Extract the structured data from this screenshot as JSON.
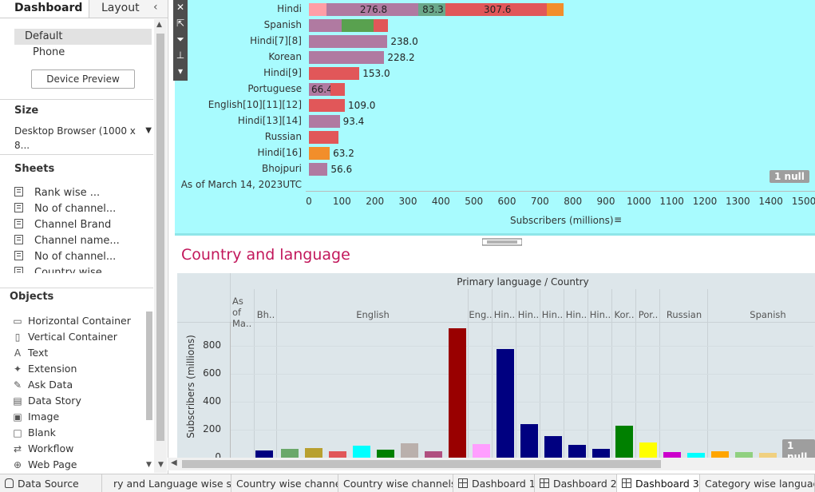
{
  "left_panel": {
    "tabs": {
      "dashboard": "Dashboard",
      "layout": "Layout"
    },
    "devices": {
      "default": "Default",
      "phone": "Phone"
    },
    "device_preview": "Device Preview",
    "size": {
      "title": "Size",
      "value": "Desktop Browser (1000 x 8..."
    },
    "sheets": {
      "title": "Sheets",
      "items": [
        "Rank wise ...",
        "No of channel...",
        "Channel Brand",
        "Channel name...",
        "No of channel...",
        "Country wise"
      ]
    },
    "objects": {
      "title": "Objects",
      "items": [
        {
          "label": "Horizontal Container",
          "icon": "horizontal-container-icon",
          "glyph": "▭"
        },
        {
          "label": "Vertical Container",
          "icon": "vertical-container-icon",
          "glyph": "▯"
        },
        {
          "label": "Text",
          "icon": "text-icon",
          "glyph": "A"
        },
        {
          "label": "Extension",
          "icon": "extension-icon",
          "glyph": "✦"
        },
        {
          "label": "Ask Data",
          "icon": "ask-data-icon",
          "glyph": "✎"
        },
        {
          "label": "Data Story",
          "icon": "data-story-icon",
          "glyph": "▤"
        },
        {
          "label": "Image",
          "icon": "image-icon",
          "glyph": "▣"
        },
        {
          "label": "Blank",
          "icon": "blank-icon",
          "glyph": "□"
        },
        {
          "label": "Workflow",
          "icon": "workflow-icon",
          "glyph": "⇄"
        },
        {
          "label": "Web Page",
          "icon": "web-page-icon",
          "glyph": "⊕"
        }
      ]
    }
  },
  "top_chart": {
    "rows": [
      {
        "label": "Hindi",
        "segments": [
          {
            "value": 54.0,
            "color": "#ff9ea6",
            "text": ""
          },
          {
            "value": 276.8,
            "color": "#b07aa1",
            "text": "276.8"
          },
          {
            "value": 83.3,
            "color": "#6aa88a",
            "text": "83.3"
          },
          {
            "value": 307.6,
            "color": "#e15759",
            "text": "307.6"
          },
          {
            "value": 50.0,
            "color": "#f28e2b",
            "text": ""
          }
        ],
        "total_label": ""
      },
      {
        "label": "Spanish",
        "segments": [
          {
            "value": 100,
            "color": "#b07aa1",
            "text": ""
          },
          {
            "value": 95,
            "color": "#59a14f",
            "text": ""
          },
          {
            "value": 45,
            "color": "#e15759",
            "text": ""
          }
        ],
        "total_label": ""
      },
      {
        "label": "Hindi[7][8]",
        "segments": [
          {
            "value": 238.0,
            "color": "#b07aa1",
            "text": ""
          }
        ],
        "total_label": "238.0"
      },
      {
        "label": "Korean",
        "segments": [
          {
            "value": 228.2,
            "color": "#b07aa1",
            "text": ""
          }
        ],
        "total_label": "228.2"
      },
      {
        "label": "Hindi[9]",
        "segments": [
          {
            "value": 153.0,
            "color": "#e15759",
            "text": ""
          }
        ],
        "total_label": "153.0"
      },
      {
        "label": "Portuguese",
        "segments": [
          {
            "value": 66.4,
            "color": "#b07aa1",
            "text": "66.4"
          },
          {
            "value": 42,
            "color": "#e15759",
            "text": ""
          }
        ],
        "total_label": ""
      },
      {
        "label": "English[10][11][12]",
        "segments": [
          {
            "value": 109.0,
            "color": "#e15759",
            "text": ""
          }
        ],
        "total_label": "109.0"
      },
      {
        "label": "Hindi[13][14]",
        "segments": [
          {
            "value": 93.4,
            "color": "#b07aa1",
            "text": ""
          }
        ],
        "total_label": "93.4"
      },
      {
        "label": "Russian",
        "segments": [
          {
            "value": 90,
            "color": "#e15759",
            "text": ""
          }
        ],
        "total_label": ""
      },
      {
        "label": "Hindi[16]",
        "segments": [
          {
            "value": 63.2,
            "color": "#f28e2b",
            "text": ""
          }
        ],
        "total_label": "63.2"
      },
      {
        "label": "Bhojpuri",
        "segments": [
          {
            "value": 56.6,
            "color": "#b07aa1",
            "text": ""
          }
        ],
        "total_label": "56.6"
      },
      {
        "label": "As of March 14, 2023UTC",
        "segments": [],
        "total_label": ""
      }
    ],
    "x_ticks": [
      0,
      100,
      200,
      300,
      400,
      500,
      600,
      700,
      800,
      900,
      1000,
      1100,
      1200,
      1300,
      1400,
      1500
    ],
    "x_title": "Subscribers (millions)",
    "null_badge": "1 null"
  },
  "section_title": "Country and language",
  "chart_data": {
    "type": "bar",
    "title": "Primary language / Country",
    "ylabel": "Subscribers (millions)",
    "ylim": [
      0,
      900
    ],
    "y_ticks": [
      0,
      200,
      400,
      600,
      800
    ],
    "headers": [
      {
        "label": "As of Ma..",
        "bars": 0
      },
      {
        "label": "Bh..",
        "bars": 1
      },
      {
        "label": "English",
        "bars": 8
      },
      {
        "label": "Eng..",
        "bars": 1
      },
      {
        "label": "Hin..",
        "bars": 1
      },
      {
        "label": "Hin..",
        "bars": 1
      },
      {
        "label": "Hin..",
        "bars": 1
      },
      {
        "label": "Hin..",
        "bars": 1
      },
      {
        "label": "Hin..",
        "bars": 1
      },
      {
        "label": "Kor..",
        "bars": 1
      },
      {
        "label": "Por..",
        "bars": 1
      },
      {
        "label": "Russian",
        "bars": 2
      },
      {
        "label": "Spanish",
        "bars": 5
      }
    ],
    "bars": [
      {
        "value": 50,
        "color": "#000080"
      },
      {
        "value": 65,
        "color": "#6aa86a"
      },
      {
        "value": 70,
        "color": "#b8a030"
      },
      {
        "value": 45,
        "color": "#e15759"
      },
      {
        "value": 85,
        "color": "#00ffff"
      },
      {
        "value": 60,
        "color": "#008000"
      },
      {
        "value": 105,
        "color": "#bab0ac"
      },
      {
        "value": 45,
        "color": "#b05080"
      },
      {
        "value": 925,
        "color": "#990000"
      },
      {
        "value": 100,
        "color": "#ff9eff"
      },
      {
        "value": 775,
        "color": "#000080"
      },
      {
        "value": 238,
        "color": "#000080"
      },
      {
        "value": 153,
        "color": "#000080"
      },
      {
        "value": 93,
        "color": "#000080"
      },
      {
        "value": 63,
        "color": "#000080"
      },
      {
        "value": 228,
        "color": "#008000"
      },
      {
        "value": 109,
        "color": "#ffff00"
      },
      {
        "value": 40,
        "color": "#cc00cc"
      },
      {
        "value": 35,
        "color": "#00ffff"
      },
      {
        "value": 45,
        "color": "#ffa500"
      },
      {
        "value": 40,
        "color": "#90d080"
      },
      {
        "value": 35,
        "color": "#f0d080"
      },
      {
        "value": 30,
        "color": "#a0d0d0"
      }
    ],
    "null_badge": "1 null"
  },
  "sheet_tabs": [
    {
      "label": "Data Source",
      "icon": "datasource-icon",
      "active": false
    },
    {
      "label": "ry and Language wise sub...",
      "icon": "",
      "active": false
    },
    {
      "label": "Country wise channel",
      "icon": "",
      "active": false
    },
    {
      "label": "Country wise channels",
      "icon": "",
      "active": false
    },
    {
      "label": "Dashboard 1",
      "icon": "dashboard-icon",
      "active": false
    },
    {
      "label": "Dashboard 2",
      "icon": "dashboard-icon",
      "active": false
    },
    {
      "label": "Dashboard 3",
      "icon": "dashboard-icon",
      "active": true
    },
    {
      "label": "Category wise language",
      "icon": "",
      "active": false
    }
  ]
}
